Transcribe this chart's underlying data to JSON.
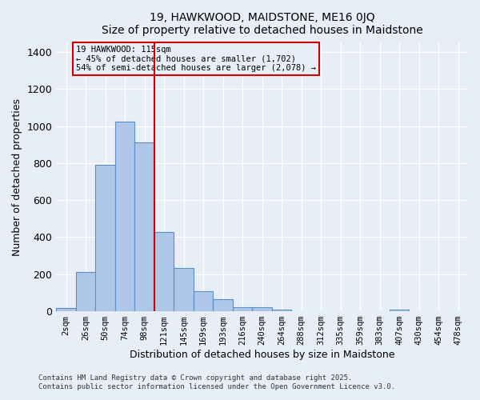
{
  "title1": "19, HAWKWOOD, MAIDSTONE, ME16 0JQ",
  "title2": "Size of property relative to detached houses in Maidstone",
  "xlabel": "Distribution of detached houses by size in Maidstone",
  "ylabel": "Number of detached properties",
  "bar_labels": [
    "2sqm",
    "26sqm",
    "50sqm",
    "74sqm",
    "98sqm",
    "121sqm",
    "145sqm",
    "169sqm",
    "193sqm",
    "216sqm",
    "240sqm",
    "264sqm",
    "288sqm",
    "312sqm",
    "335sqm",
    "359sqm",
    "383sqm",
    "407sqm",
    "430sqm",
    "454sqm",
    "478sqm"
  ],
  "bar_values": [
    18,
    210,
    790,
    1025,
    910,
    430,
    235,
    108,
    65,
    20,
    20,
    10,
    0,
    0,
    0,
    0,
    0,
    10,
    0,
    0,
    0
  ],
  "bar_color": "#aec6e8",
  "bar_edge_color": "#5a8fc2",
  "background_color": "#e8eef8",
  "grid_color": "#ffffff",
  "annotation_text": "19 HAWKWOOD: 115sqm\n← 45% of detached houses are smaller (1,702)\n54% of semi-detached houses are larger (2,078) →",
  "annotation_box_edge": "#cc0000",
  "vline_color": "#cc0000",
  "vline_x": 4.5,
  "ylim": [
    0,
    1450
  ],
  "yticks": [
    0,
    200,
    400,
    600,
    800,
    1000,
    1200,
    1400
  ],
  "footer1": "Contains HM Land Registry data © Crown copyright and database right 2025.",
  "footer2": "Contains public sector information licensed under the Open Government Licence v3.0."
}
